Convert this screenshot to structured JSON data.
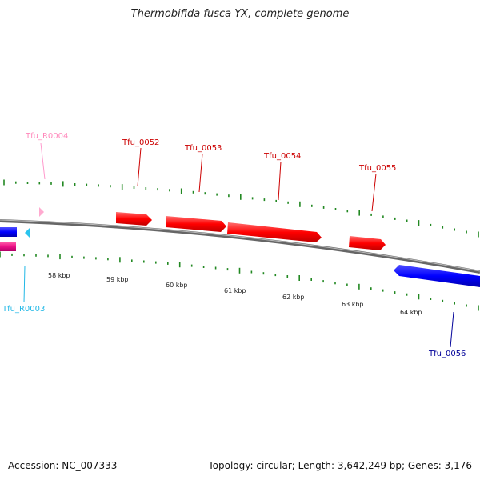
{
  "title": "Thermobifida fusca YX, complete genome",
  "footer": {
    "accession": "Accession: NC_007333",
    "topology": "Topology: circular; Length: 3,642,249 bp; Genes: 3,176"
  },
  "colors": {
    "forward_gene": "#ff0000",
    "reverse_gene": "#0000ff",
    "forward_rna": "#ff9acb",
    "reverse_rna": "#2ac4ee",
    "forward_gene_label": "#cc0000",
    "reverse_gene_label": "#000099",
    "forward_rna_label": "#ff88bb",
    "reverse_rna_label": "#22b8e6",
    "backbone": "#888888",
    "ticks": "#228822"
  },
  "kbp_labels": [
    "58 kbp",
    "59 kbp",
    "60 kbp",
    "61 kbp",
    "62 kbp",
    "63 kbp",
    "64 kbp"
  ],
  "features": [
    {
      "label": "Tfu_R0004",
      "kind": "forward_rna"
    },
    {
      "label": "Tfu_R0003",
      "kind": "reverse_rna"
    },
    {
      "label": "Tfu_0052",
      "kind": "forward_gene"
    },
    {
      "label": "Tfu_0053",
      "kind": "forward_gene"
    },
    {
      "label": "Tfu_0054",
      "kind": "forward_gene"
    },
    {
      "label": "Tfu_0055",
      "kind": "forward_gene"
    },
    {
      "label": "Tfu_0056",
      "kind": "reverse_gene"
    }
  ]
}
